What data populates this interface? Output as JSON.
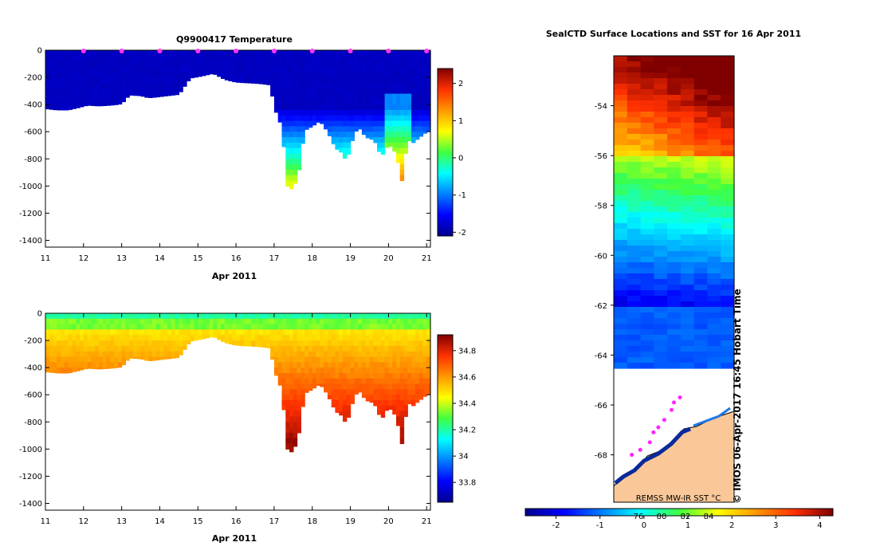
{
  "chart_data": [
    {
      "type": "heatmap",
      "title": "Q9900417  Temperature",
      "xlabel": "Apr 2011",
      "ylabel": "",
      "xlim": [
        11,
        21.1
      ],
      "ylim": [
        -1450,
        0
      ],
      "x_ticks": [
        "11",
        "12",
        "13",
        "14",
        "15",
        "16",
        "17",
        "18",
        "19",
        "20",
        "21"
      ],
      "y_ticks": [
        "0",
        "-200",
        "-400",
        "-600",
        "-800",
        "-1000",
        "-1200",
        "-1400"
      ],
      "colorbar": {
        "min": -2.1,
        "max": 2.4,
        "ticks": [
          "-2",
          "-1",
          "0",
          "1",
          "2"
        ]
      },
      "surface_markers_x": [
        12,
        13,
        14,
        15,
        16,
        17,
        18,
        19,
        20,
        21
      ]
    },
    {
      "type": "heatmap",
      "title": "",
      "xlabel": "Apr 2011",
      "ylabel": "",
      "xlim": [
        11,
        21.1
      ],
      "ylim": [
        -1450,
        0
      ],
      "x_ticks": [
        "11",
        "12",
        "13",
        "14",
        "15",
        "16",
        "17",
        "18",
        "19",
        "20",
        "21"
      ],
      "y_ticks": [
        "0",
        "-200",
        "-400",
        "-600",
        "-800",
        "-1000",
        "-1200",
        "-1400"
      ],
      "colorbar": {
        "min": 33.65,
        "max": 34.92,
        "ticks": [
          "33.8",
          "34",
          "34.2",
          "34.4",
          "34.6",
          "34.8"
        ]
      }
    },
    {
      "type": "heatmap",
      "title": "SealCTD Surface Locations and SST for 16 Apr 2011",
      "y_ticks": [
        "-54",
        "-56",
        "-58",
        "-60",
        "-62",
        "-64",
        "-66",
        "-68"
      ],
      "ylim": [
        -69.9,
        -52
      ],
      "colorbar": {
        "min": -2.7,
        "max": 4.3,
        "ticks": [
          "-2",
          "-1",
          "0",
          "1",
          "2",
          "3",
          "4"
        ],
        "upper_ticks": [
          "76",
          "80",
          "82",
          "84"
        ]
      },
      "source_label": "REMSS MW-IR SST °C",
      "watermark": "© IMOS 06-Apr-2017 16:45 Hobart Time"
    }
  ]
}
